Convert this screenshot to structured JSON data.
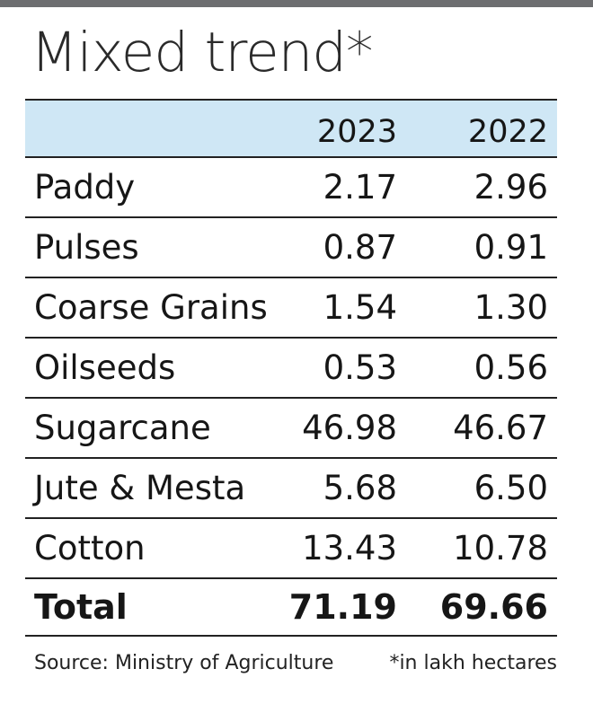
{
  "title": "Mixed trend*",
  "columns": [
    "2023",
    "2022"
  ],
  "rows": [
    {
      "crop": "Paddy",
      "v2023": "2.17",
      "v2022": "2.96"
    },
    {
      "crop": "Pulses",
      "v2023": "0.87",
      "v2022": "0.91"
    },
    {
      "crop": "Coarse Grains",
      "v2023": "1.54",
      "v2022": "1.30"
    },
    {
      "crop": "Oilseeds",
      "v2023": "0.53",
      "v2022": "0.56"
    },
    {
      "crop": "Sugarcane",
      "v2023": "46.98",
      "v2022": "46.67"
    },
    {
      "crop": "Jute & Mesta",
      "v2023": "5.68",
      "v2022": "6.50"
    },
    {
      "crop": "Cotton",
      "v2023": "13.43",
      "v2022": "10.78"
    }
  ],
  "total": {
    "label": "Total",
    "v2023": "71.19",
    "v2022": "69.66"
  },
  "source": "Source: Ministry of Agriculture",
  "footnote": "*in lakh hectares",
  "colors": {
    "header_bg": "#cfe7f5",
    "top_bar": "#6d6e70",
    "rule": "#222222"
  },
  "chart_data": {
    "type": "table",
    "title": "Mixed trend*",
    "columns": [
      "",
      "2023",
      "2022"
    ],
    "rows": [
      [
        "Paddy",
        2.17,
        2.96
      ],
      [
        "Pulses",
        0.87,
        0.91
      ],
      [
        "Coarse Grains",
        1.54,
        1.3
      ],
      [
        "Oilseeds",
        0.53,
        0.56
      ],
      [
        "Sugarcane",
        46.98,
        46.67
      ],
      [
        "Jute & Mesta",
        5.68,
        6.5
      ],
      [
        "Cotton",
        13.43,
        10.78
      ],
      [
        "Total",
        71.19,
        69.66
      ]
    ],
    "annotations": [
      "Source: Ministry of Agriculture",
      "*in lakh hectares"
    ]
  }
}
